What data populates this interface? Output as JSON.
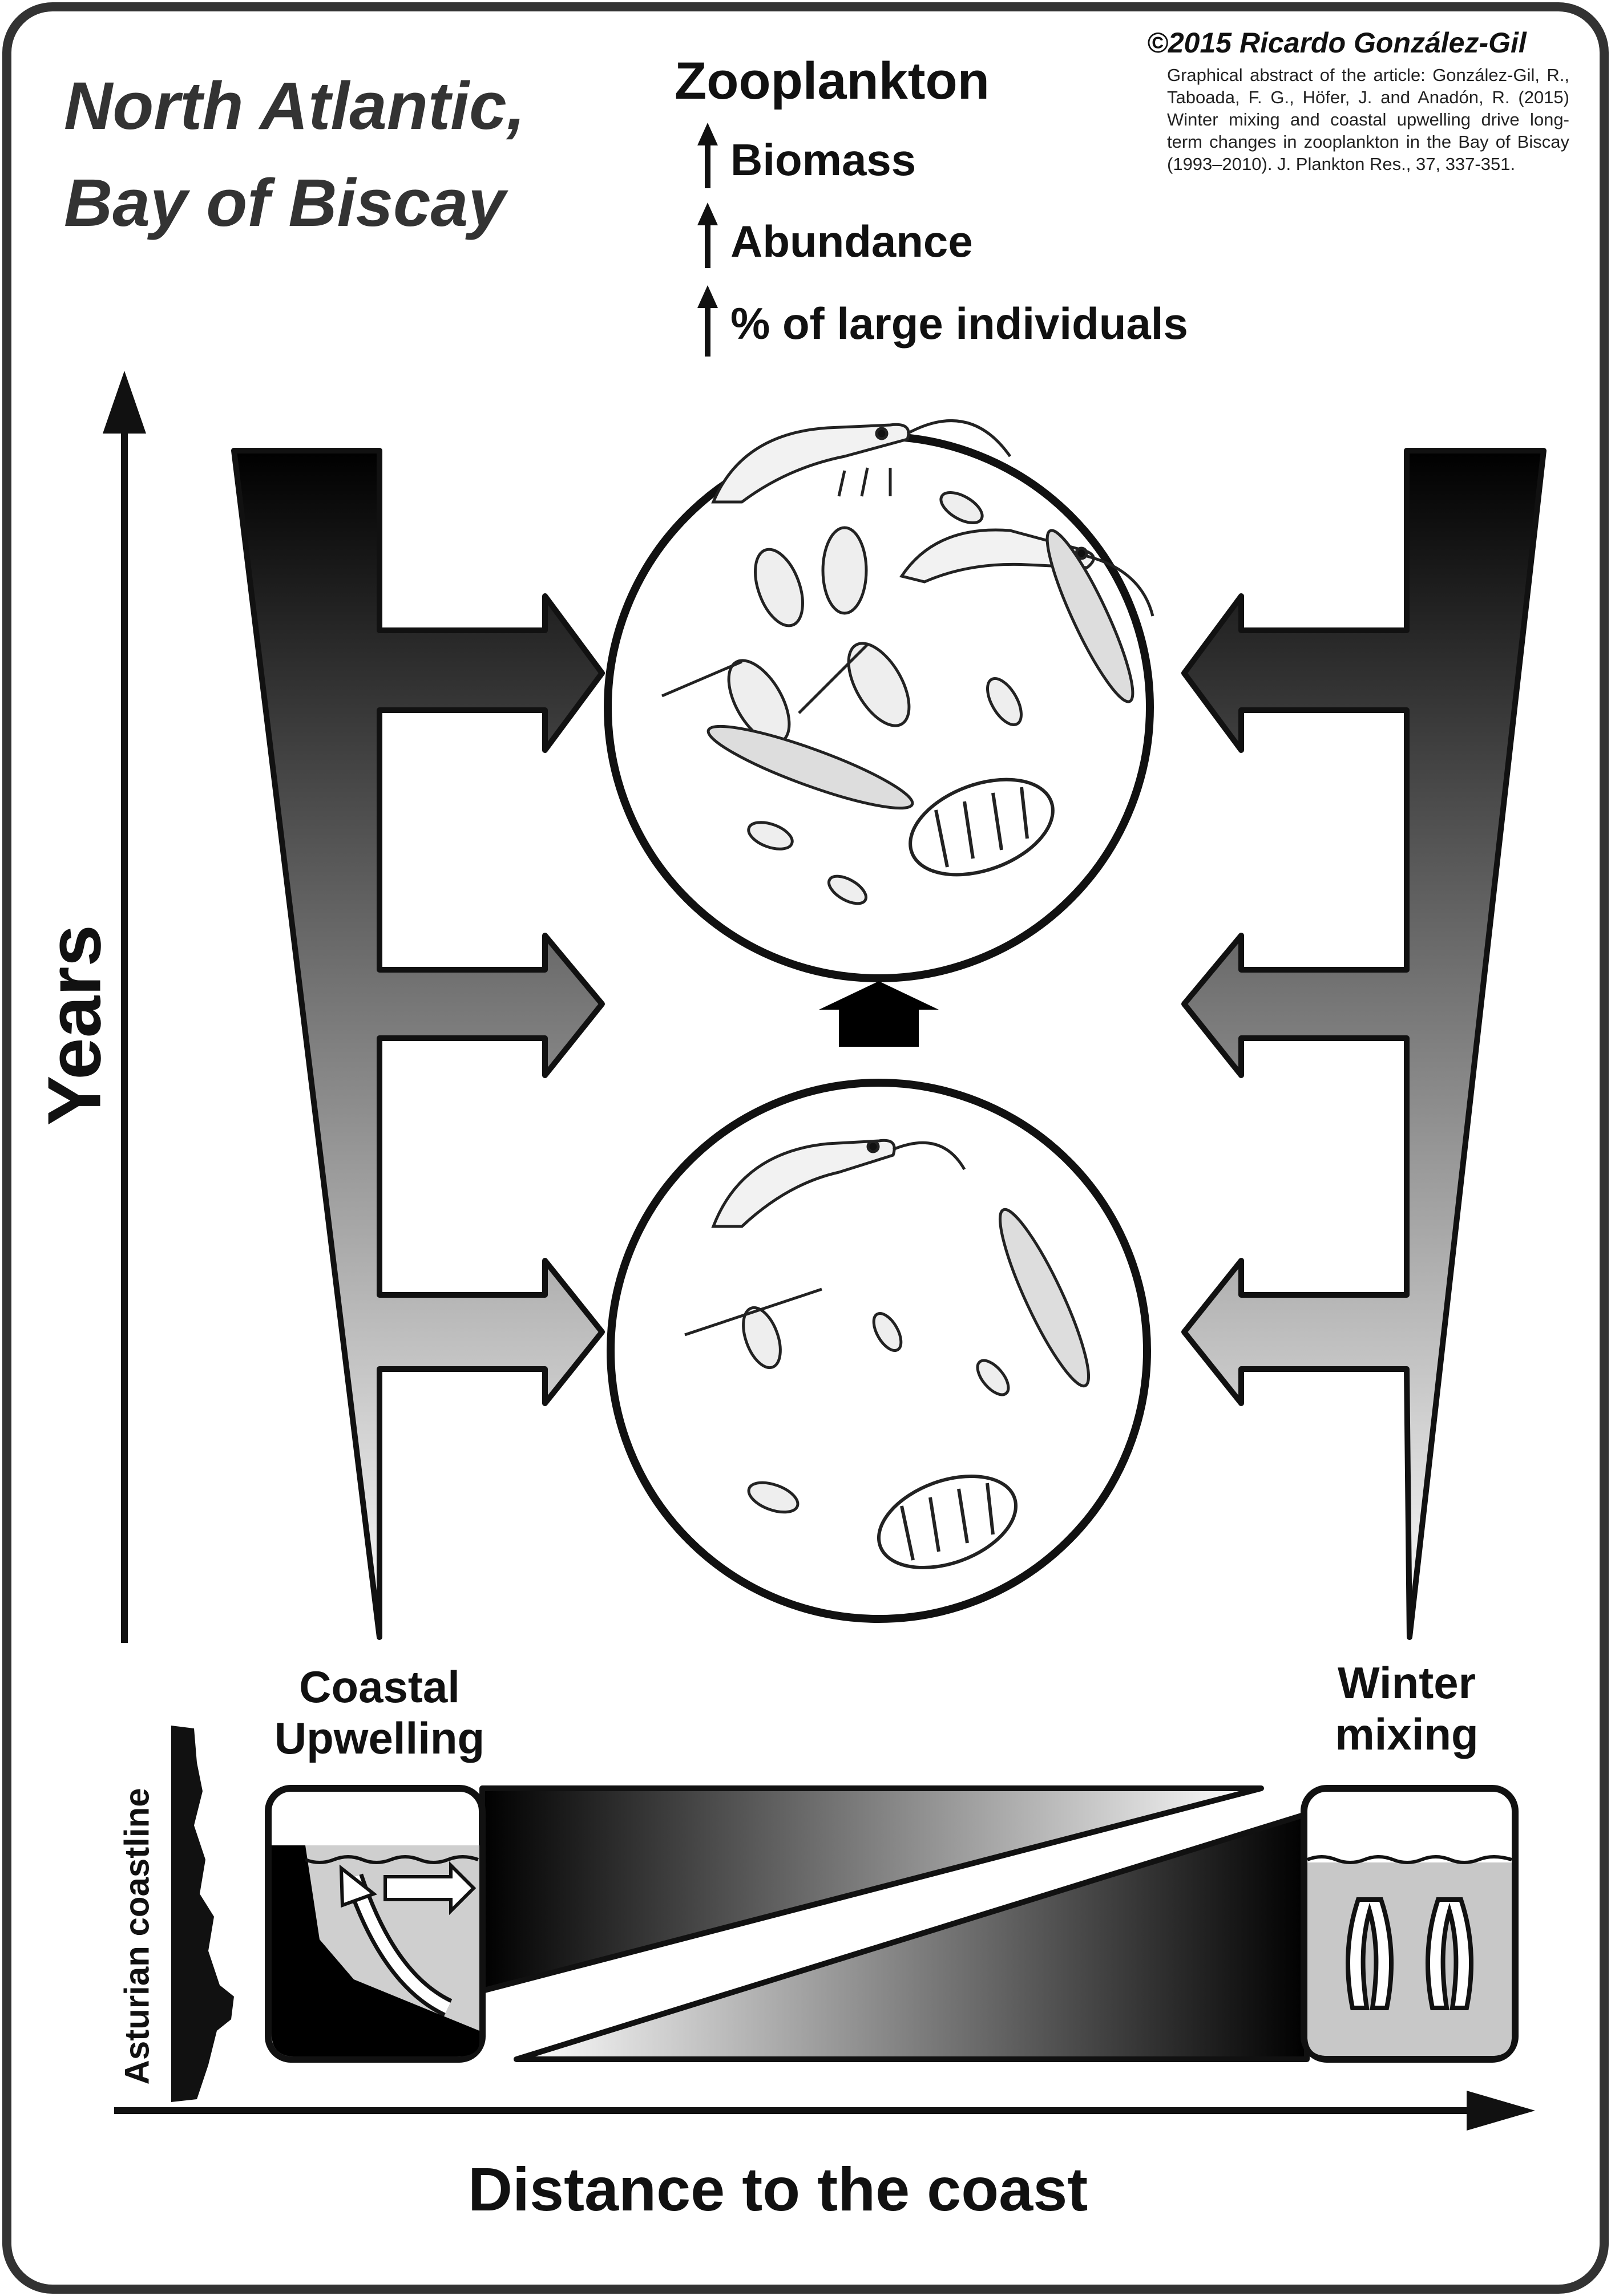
{
  "title": {
    "line1": "North Atlantic,",
    "line2": "Bay of Biscay"
  },
  "zooplankton": {
    "heading": "Zooplankton",
    "items": [
      "Biomass",
      "Abundance",
      "% of large individuals"
    ],
    "trend_icon": "up-arrow-icon"
  },
  "credit": {
    "copyright": "©2015 Ricardo González-Gil",
    "citation": "Graphical abstract of the article: González-Gil, R., Taboada, F. G., Höfer, J. and Anadón, R. (2015) Winter mixing and coastal upwelling drive long-term changes in zooplankton in the Bay of Biscay (1993–2010). J. Plankton Res., 37, 337-351."
  },
  "axes": {
    "y_label": "Years",
    "x_label": "Distance to the coast"
  },
  "drivers": {
    "coastal": "Coastal Upwelling",
    "winter": "Winter mixing",
    "coastline": "Asturian coastline"
  },
  "colors": {
    "ink": "#111111",
    "fill_dark": "#000000",
    "fill_light": "#ffffff",
    "water": "#cccccc",
    "frame": "#333333"
  }
}
